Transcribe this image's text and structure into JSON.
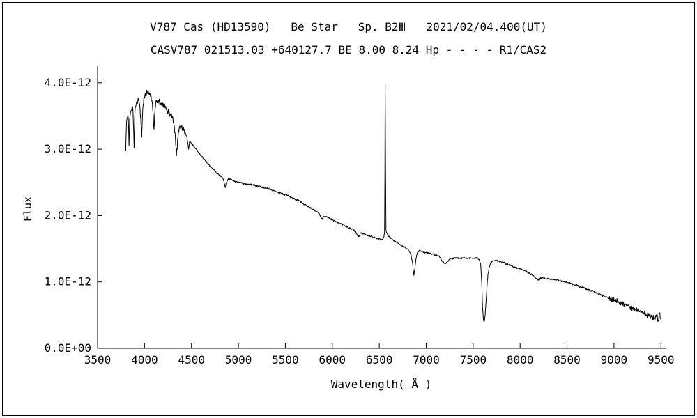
{
  "window": {
    "background": "#ffffff",
    "border_color": "#000000"
  },
  "chart_data": {
    "type": "line",
    "title": "V787 Cas (HD13590)   Be Star   Sp. B2Ⅲ   2021/02/04.400(UT)",
    "subtitle": "CASV787 021513.03 +640127.7 BE 8.00 8.24 Hp - - - - R1/CAS2",
    "xlabel": "Wavelength( Å )",
    "ylabel": "Flux",
    "x_range": [
      3500,
      9550
    ],
    "y_range": [
      0,
      4.25
    ],
    "y_unit": "1e-12 flux units; series values are in multiples of 1e-12",
    "x_tick_values": [
      3500,
      4000,
      4500,
      5000,
      5500,
      6000,
      6500,
      7000,
      7500,
      8000,
      8500,
      9000,
      9500
    ],
    "x_tick_labels": [
      "3500",
      "4000",
      "4500",
      "5000",
      "5500",
      "6000",
      "6500",
      "7000",
      "7500",
      "8000",
      "8500",
      "9000",
      "9500"
    ],
    "y_tick_values": [
      0,
      1,
      2,
      3,
      4
    ],
    "y_tick_labels": [
      "0.0E+00",
      "1.0E-12",
      "2.0E-12",
      "3.0E-12",
      "4.0E-12"
    ],
    "line_color": "#000000",
    "axis_color": "#000000",
    "grid": false,
    "legend": false,
    "noise_regions": [
      [
        3800,
        4430,
        0.045
      ],
      [
        4430,
        6540,
        0.013
      ],
      [
        6575,
        8950,
        0.013
      ],
      [
        8950,
        9500,
        0.04
      ]
    ],
    "series": [
      {
        "name": "spectrum",
        "points": [
          [
            3800,
            2.97
          ],
          [
            3806,
            3.3
          ],
          [
            3812,
            3.45
          ],
          [
            3820,
            3.5
          ],
          [
            3828,
            3.44
          ],
          [
            3835,
            3.05
          ],
          [
            3842,
            3.46
          ],
          [
            3850,
            3.54
          ],
          [
            3858,
            3.58
          ],
          [
            3866,
            3.62
          ],
          [
            3874,
            3.64
          ],
          [
            3881,
            3.4
          ],
          [
            3889,
            3.02
          ],
          [
            3896,
            3.5
          ],
          [
            3904,
            3.64
          ],
          [
            3912,
            3.68
          ],
          [
            3920,
            3.7
          ],
          [
            3928,
            3.72
          ],
          [
            3936,
            3.73
          ],
          [
            3944,
            3.7
          ],
          [
            3952,
            3.62
          ],
          [
            3960,
            3.45
          ],
          [
            3970,
            3.18
          ],
          [
            3978,
            3.5
          ],
          [
            3986,
            3.68
          ],
          [
            3995,
            3.76
          ],
          [
            4004,
            3.8
          ],
          [
            4013,
            3.82
          ],
          [
            4022,
            3.84
          ],
          [
            4031,
            3.86
          ],
          [
            4040,
            3.88
          ],
          [
            4050,
            3.85
          ],
          [
            4060,
            3.83
          ],
          [
            4070,
            3.8
          ],
          [
            4080,
            3.72
          ],
          [
            4090,
            3.55
          ],
          [
            4101,
            3.3
          ],
          [
            4110,
            3.56
          ],
          [
            4119,
            3.7
          ],
          [
            4130,
            3.74
          ],
          [
            4142,
            3.73
          ],
          [
            4154,
            3.72
          ],
          [
            4166,
            3.7
          ],
          [
            4178,
            3.69
          ],
          [
            4190,
            3.67
          ],
          [
            4205,
            3.65
          ],
          [
            4220,
            3.62
          ],
          [
            4235,
            3.6
          ],
          [
            4250,
            3.57
          ],
          [
            4265,
            3.54
          ],
          [
            4280,
            3.51
          ],
          [
            4295,
            3.47
          ],
          [
            4310,
            3.4
          ],
          [
            4325,
            3.25
          ],
          [
            4340,
            2.9
          ],
          [
            4350,
            3.08
          ],
          [
            4362,
            3.28
          ],
          [
            4375,
            3.35
          ],
          [
            4390,
            3.34
          ],
          [
            4405,
            3.31
          ],
          [
            4420,
            3.28
          ],
          [
            4435,
            3.24
          ],
          [
            4450,
            3.2
          ],
          [
            4462,
            3.08
          ],
          [
            4471,
            3.0
          ],
          [
            4480,
            3.12
          ],
          [
            4492,
            3.1
          ],
          [
            4505,
            3.08
          ],
          [
            4520,
            3.05
          ],
          [
            4535,
            3.02
          ],
          [
            4550,
            3.0
          ],
          [
            4570,
            2.96
          ],
          [
            4590,
            2.93
          ],
          [
            4610,
            2.89
          ],
          [
            4630,
            2.86
          ],
          [
            4650,
            2.82
          ],
          [
            4670,
            2.79
          ],
          [
            4690,
            2.76
          ],
          [
            4710,
            2.73
          ],
          [
            4730,
            2.7
          ],
          [
            4750,
            2.67
          ],
          [
            4770,
            2.64
          ],
          [
            4790,
            2.62
          ],
          [
            4810,
            2.59
          ],
          [
            4830,
            2.57
          ],
          [
            4845,
            2.52
          ],
          [
            4861,
            2.42
          ],
          [
            4872,
            2.5
          ],
          [
            4886,
            2.54
          ],
          [
            4900,
            2.55
          ],
          [
            4920,
            2.54
          ],
          [
            4940,
            2.53
          ],
          [
            4960,
            2.52
          ],
          [
            4980,
            2.51
          ],
          [
            5000,
            2.5
          ],
          [
            5030,
            2.49
          ],
          [
            5060,
            2.48
          ],
          [
            5090,
            2.47
          ],
          [
            5120,
            2.47
          ],
          [
            5150,
            2.46
          ],
          [
            5180,
            2.45
          ],
          [
            5210,
            2.44
          ],
          [
            5240,
            2.43
          ],
          [
            5270,
            2.42
          ],
          [
            5300,
            2.41
          ],
          [
            5330,
            2.4
          ],
          [
            5360,
            2.38
          ],
          [
            5390,
            2.37
          ],
          [
            5420,
            2.35
          ],
          [
            5450,
            2.34
          ],
          [
            5480,
            2.32
          ],
          [
            5510,
            2.31
          ],
          [
            5540,
            2.29
          ],
          [
            5570,
            2.27
          ],
          [
            5600,
            2.25
          ],
          [
            5630,
            2.23
          ],
          [
            5660,
            2.21
          ],
          [
            5690,
            2.18
          ],
          [
            5720,
            2.16
          ],
          [
            5750,
            2.13
          ],
          [
            5780,
            2.11
          ],
          [
            5810,
            2.08
          ],
          [
            5840,
            2.05
          ],
          [
            5865,
            2.02
          ],
          [
            5882,
            1.97
          ],
          [
            5892,
            1.94
          ],
          [
            5905,
            1.98
          ],
          [
            5925,
            1.99
          ],
          [
            5950,
            1.97
          ],
          [
            5980,
            1.95
          ],
          [
            6010,
            1.93
          ],
          [
            6040,
            1.91
          ],
          [
            6070,
            1.89
          ],
          [
            6100,
            1.87
          ],
          [
            6130,
            1.85
          ],
          [
            6160,
            1.83
          ],
          [
            6190,
            1.81
          ],
          [
            6220,
            1.79
          ],
          [
            6245,
            1.76
          ],
          [
            6268,
            1.7
          ],
          [
            6284,
            1.68
          ],
          [
            6300,
            1.74
          ],
          [
            6330,
            1.73
          ],
          [
            6360,
            1.71
          ],
          [
            6390,
            1.7
          ],
          [
            6420,
            1.68
          ],
          [
            6450,
            1.67
          ],
          [
            6480,
            1.65
          ],
          [
            6510,
            1.64
          ],
          [
            6534,
            1.64
          ],
          [
            6548,
            1.67
          ],
          [
            6556,
            1.74
          ],
          [
            6560,
            2.6
          ],
          [
            6563,
            3.97
          ],
          [
            6567,
            2.7
          ],
          [
            6572,
            1.78
          ],
          [
            6582,
            1.73
          ],
          [
            6600,
            1.69
          ],
          [
            6625,
            1.66
          ],
          [
            6650,
            1.63
          ],
          [
            6675,
            1.61
          ],
          [
            6700,
            1.58
          ],
          [
            6725,
            1.56
          ],
          [
            6750,
            1.54
          ],
          [
            6775,
            1.52
          ],
          [
            6800,
            1.5
          ],
          [
            6822,
            1.46
          ],
          [
            6840,
            1.4
          ],
          [
            6855,
            1.28
          ],
          [
            6868,
            1.1
          ],
          [
            6878,
            1.18
          ],
          [
            6890,
            1.34
          ],
          [
            6905,
            1.44
          ],
          [
            6925,
            1.47
          ],
          [
            6950,
            1.46
          ],
          [
            6975,
            1.45
          ],
          [
            7000,
            1.44
          ],
          [
            7030,
            1.43
          ],
          [
            7060,
            1.42
          ],
          [
            7090,
            1.41
          ],
          [
            7120,
            1.4
          ],
          [
            7150,
            1.37
          ],
          [
            7172,
            1.31
          ],
          [
            7192,
            1.28
          ],
          [
            7212,
            1.28
          ],
          [
            7232,
            1.31
          ],
          [
            7252,
            1.34
          ],
          [
            7275,
            1.35
          ],
          [
            7300,
            1.36
          ],
          [
            7330,
            1.36
          ],
          [
            7360,
            1.36
          ],
          [
            7390,
            1.36
          ],
          [
            7420,
            1.36
          ],
          [
            7450,
            1.36
          ],
          [
            7480,
            1.36
          ],
          [
            7510,
            1.36
          ],
          [
            7540,
            1.36
          ],
          [
            7565,
            1.34
          ],
          [
            7580,
            1.27
          ],
          [
            7592,
            0.98
          ],
          [
            7600,
            0.62
          ],
          [
            7608,
            0.45
          ],
          [
            7618,
            0.4
          ],
          [
            7628,
            0.5
          ],
          [
            7638,
            0.72
          ],
          [
            7648,
            0.95
          ],
          [
            7658,
            1.12
          ],
          [
            7670,
            1.22
          ],
          [
            7685,
            1.28
          ],
          [
            7700,
            1.31
          ],
          [
            7725,
            1.32
          ],
          [
            7750,
            1.32
          ],
          [
            7775,
            1.31
          ],
          [
            7800,
            1.3
          ],
          [
            7825,
            1.29
          ],
          [
            7850,
            1.27
          ],
          [
            7875,
            1.26
          ],
          [
            7900,
            1.25
          ],
          [
            7925,
            1.23
          ],
          [
            7950,
            1.22
          ],
          [
            7975,
            1.21
          ],
          [
            8000,
            1.2
          ],
          [
            8025,
            1.18
          ],
          [
            8050,
            1.17
          ],
          [
            8075,
            1.15
          ],
          [
            8100,
            1.13
          ],
          [
            8125,
            1.11
          ],
          [
            8150,
            1.08
          ],
          [
            8175,
            1.05
          ],
          [
            8200,
            1.03
          ],
          [
            8215,
            1.05
          ],
          [
            8232,
            1.06
          ],
          [
            8252,
            1.06
          ],
          [
            8275,
            1.05
          ],
          [
            8300,
            1.05
          ],
          [
            8330,
            1.04
          ],
          [
            8360,
            1.04
          ],
          [
            8390,
            1.03
          ],
          [
            8420,
            1.02
          ],
          [
            8450,
            1.01
          ],
          [
            8480,
            1.0
          ],
          [
            8510,
            0.99
          ],
          [
            8540,
            0.98
          ],
          [
            8570,
            0.96
          ],
          [
            8600,
            0.95
          ],
          [
            8630,
            0.93
          ],
          [
            8660,
            0.92
          ],
          [
            8690,
            0.9
          ],
          [
            8720,
            0.89
          ],
          [
            8750,
            0.87
          ],
          [
            8780,
            0.86
          ],
          [
            8810,
            0.84
          ],
          [
            8840,
            0.82
          ],
          [
            8870,
            0.8
          ],
          [
            8900,
            0.78
          ],
          [
            8930,
            0.77
          ],
          [
            8960,
            0.75
          ],
          [
            8990,
            0.73
          ],
          [
            9020,
            0.72
          ],
          [
            9050,
            0.7
          ],
          [
            9080,
            0.68
          ],
          [
            9110,
            0.66
          ],
          [
            9140,
            0.64
          ],
          [
            9170,
            0.62
          ],
          [
            9200,
            0.6
          ],
          [
            9230,
            0.58
          ],
          [
            9260,
            0.56
          ],
          [
            9290,
            0.54
          ],
          [
            9320,
            0.52
          ],
          [
            9350,
            0.5
          ],
          [
            9380,
            0.48
          ],
          [
            9410,
            0.47
          ],
          [
            9435,
            0.46
          ],
          [
            9455,
            0.52
          ],
          [
            9470,
            0.42
          ],
          [
            9485,
            0.52
          ],
          [
            9500,
            0.44
          ]
        ]
      }
    ]
  }
}
